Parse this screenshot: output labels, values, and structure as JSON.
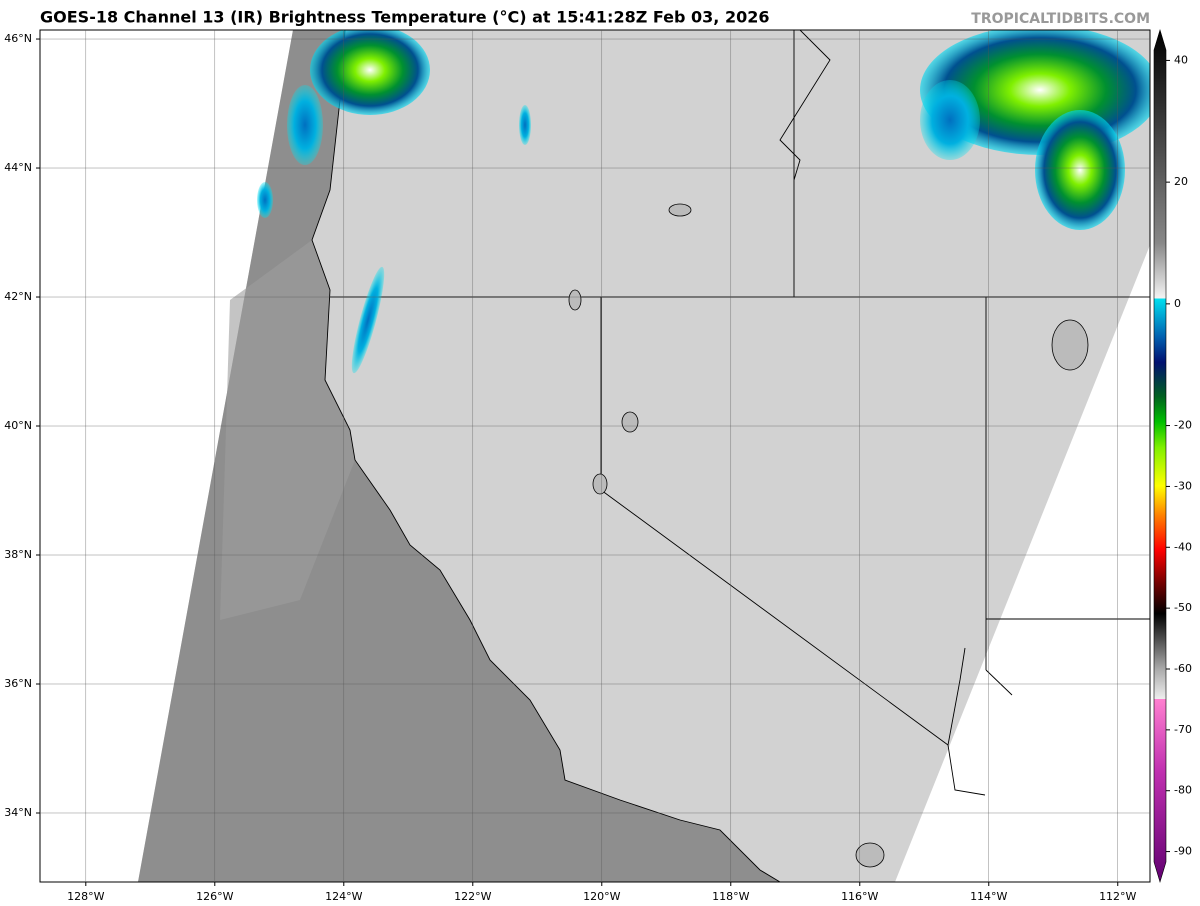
{
  "title": "GOES-18 Channel 13 (IR) Brightness Temperature (°C) at 15:41:28Z Feb 03, 2026",
  "watermark": "TROPICALTIDBITS.COM",
  "map": {
    "xlim": [
      -128.71,
      -111.5
    ],
    "ylim": [
      32.93,
      46.14
    ],
    "yticks": [
      {
        "value": 46,
        "label": "46°N"
      },
      {
        "value": 44,
        "label": "44°N"
      },
      {
        "value": 42,
        "label": "42°N"
      },
      {
        "value": 40,
        "label": "40°N"
      },
      {
        "value": 38,
        "label": "38°N"
      },
      {
        "value": 36,
        "label": "36°N"
      },
      {
        "value": 34,
        "label": "34°N"
      }
    ],
    "xticks": [
      {
        "value": -128,
        "label": "128°W"
      },
      {
        "value": -126,
        "label": "126°W"
      },
      {
        "value": -124,
        "label": "124°W"
      },
      {
        "value": -122,
        "label": "122°W"
      },
      {
        "value": -120,
        "label": "120°W"
      },
      {
        "value": -118,
        "label": "118°W"
      },
      {
        "value": -116,
        "label": "116°W"
      },
      {
        "value": -114,
        "label": "114°W"
      },
      {
        "value": -112,
        "label": "112°W"
      }
    ]
  },
  "colorbar": {
    "range": [
      -95,
      45
    ],
    "ticks": [
      40,
      20,
      0,
      -20,
      -30,
      -40,
      -50,
      -60,
      -70,
      -80,
      -90
    ]
  }
}
